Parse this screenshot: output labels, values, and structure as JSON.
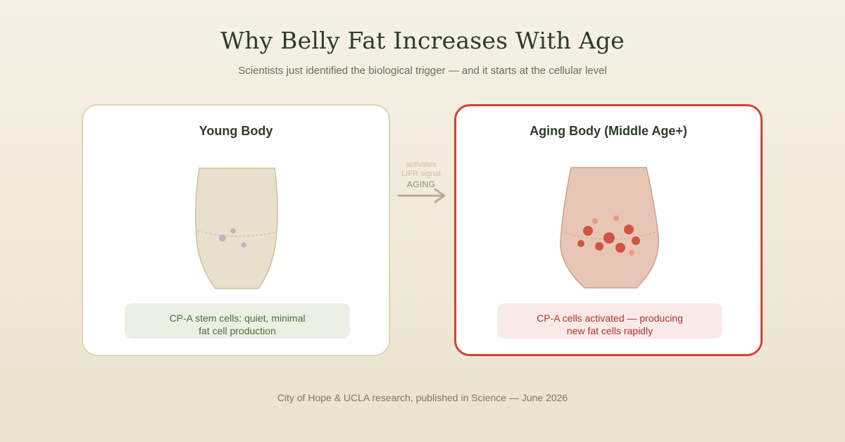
{
  "header": {
    "title": "Why Belly Fat Increases With Age",
    "subtitle": "Scientists just identified the biological trigger — and it starts at the cellular level"
  },
  "panels": {
    "young": {
      "title": "Young Body",
      "note_line1": "CP-A stem cells: quiet, minimal",
      "note_line2": "fat cell production",
      "body_color": "#e8e0cc",
      "cell_color": "#b6b8c4"
    },
    "aging": {
      "title": "Aging Body (Middle Age+)",
      "note_line1": "CP-A cells activated — producing",
      "note_line2": "new fat cells rapidly",
      "body_color": "#e8c6b5",
      "cell_color": "#d05442",
      "cell_color_light": "#e89a84"
    }
  },
  "transition": {
    "label_line1": "activates",
    "label_line2": "LIFR signal",
    "main_label": "AGING"
  },
  "footer": {
    "text": "City of Hope & UCLA research, published in Science — June 2026"
  },
  "colors": {
    "accent_red": "#cf4535",
    "border_beige": "#ddd4bb",
    "title_dark": "#2f3b2b",
    "arrow": "#b7b097"
  }
}
